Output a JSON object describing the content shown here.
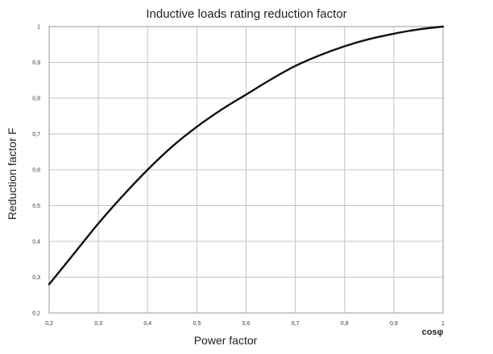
{
  "chart_data": {
    "type": "line",
    "title": "Inductive loads rating reduction factor",
    "xlabel": "Power factor",
    "x_unit_label": "cosφ",
    "ylabel": "Reduction factor F",
    "xlim": [
      0.2,
      1.0
    ],
    "ylim": [
      0.2,
      1.0
    ],
    "grid": true,
    "x_ticks": [
      "0,2",
      "0,3",
      "0,4",
      "0,5",
      "0,6",
      "0,7",
      "0,8",
      "0,9",
      "1"
    ],
    "y_ticks": [
      "0,2",
      "0,3",
      "0,4",
      "0,5",
      "0,6",
      "0,7",
      "0,8",
      "0,9",
      "1"
    ],
    "series": [
      {
        "x": [
          0.2,
          0.25,
          0.3,
          0.35,
          0.4,
          0.45,
          0.5,
          0.55,
          0.6,
          0.65,
          0.7,
          0.75,
          0.8,
          0.85,
          0.9,
          0.95,
          1.0
        ],
        "y": [
          0.28,
          0.365,
          0.45,
          0.528,
          0.6,
          0.665,
          0.72,
          0.768,
          0.81,
          0.852,
          0.89,
          0.92,
          0.945,
          0.965,
          0.98,
          0.992,
          1.0
        ]
      }
    ]
  }
}
